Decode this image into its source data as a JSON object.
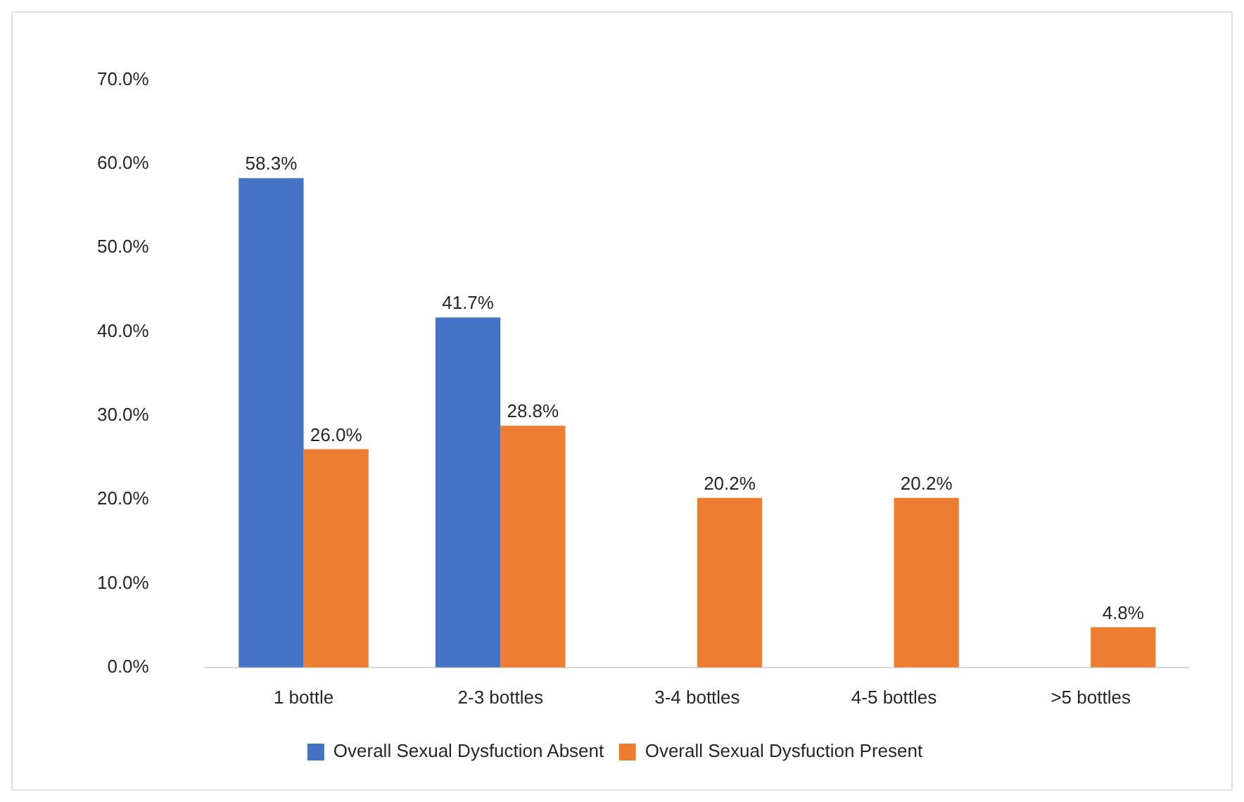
{
  "chart_data": {
    "type": "bar",
    "categories": [
      "1 bottle",
      "2-3 bottles",
      "3-4 bottles",
      "4-5 bottles",
      ">5 bottles"
    ],
    "series": [
      {
        "name": "Overall Sexual Dysfuction Absent",
        "color": "#4472c4",
        "values": [
          58.3,
          41.7,
          null,
          null,
          null
        ],
        "value_labels": [
          "58.3%",
          "41.7%",
          null,
          null,
          null
        ]
      },
      {
        "name": "Overall Sexual Dysfuction Present",
        "color": "#ed7d31",
        "values": [
          26.0,
          28.8,
          20.2,
          20.2,
          4.8
        ],
        "value_labels": [
          "26.0%",
          "28.8%",
          "20.2%",
          "20.2%",
          "4.8%"
        ]
      }
    ],
    "ylim": [
      0,
      70
    ],
    "yticks": [
      {
        "value": 0,
        "label": "0.0%"
      },
      {
        "value": 10,
        "label": "10.0%"
      },
      {
        "value": 20,
        "label": "20.0%"
      },
      {
        "value": 30,
        "label": "30.0%"
      },
      {
        "value": 40,
        "label": "40.0%"
      },
      {
        "value": 50,
        "label": "50.0%"
      },
      {
        "value": 60,
        "label": "60.0%"
      },
      {
        "value": 70,
        "label": "70.0%"
      }
    ],
    "grid": false,
    "legend": "bottom"
  }
}
